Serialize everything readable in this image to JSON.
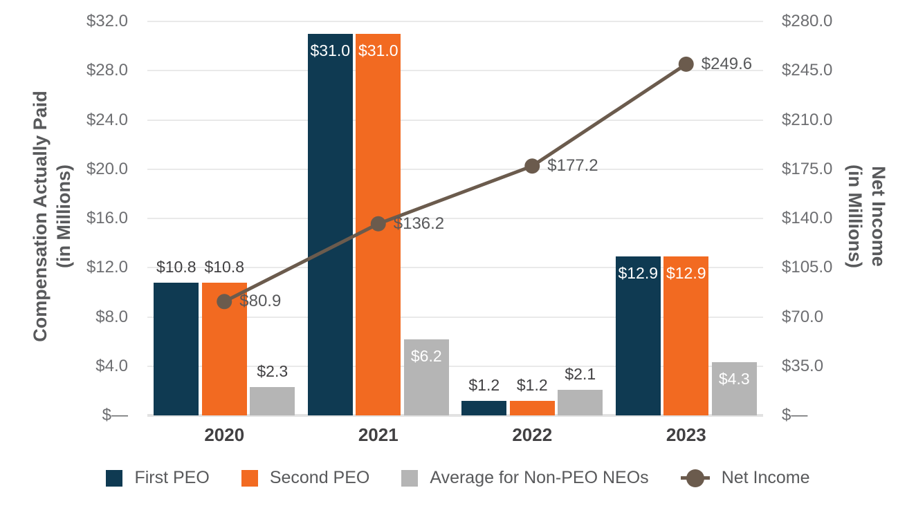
{
  "chart_data": {
    "type": "combo-bar-line",
    "categories": [
      "2020",
      "2021",
      "2022",
      "2023"
    ],
    "left_axis": {
      "title_lines": [
        "Compensation Actually Paid",
        "(in Millions)"
      ],
      "ticks": [
        "$32.0",
        "$28.0",
        "$24.0",
        "$20.0",
        "$16.0",
        "$12.0",
        "$8.0",
        "$4.0",
        "$—"
      ],
      "min": 0,
      "max": 32
    },
    "right_axis": {
      "title_lines": [
        "Net Income",
        "(in Millions)"
      ],
      "ticks": [
        "$280.0",
        "$245.0",
        "$210.0",
        "$175.0",
        "$140.0",
        "$105.0",
        "$70.0",
        "$35.0",
        "$—"
      ],
      "min": 0,
      "max": 280
    },
    "series": [
      {
        "name": "First PEO",
        "axis": "left",
        "color": "#0f3a52",
        "values": [
          10.8,
          31.0,
          1.2,
          12.9
        ],
        "labels": [
          "$10.8",
          "$31.0",
          "$1.2",
          "$12.9"
        ]
      },
      {
        "name": "Second PEO",
        "axis": "left",
        "color": "#f26a21",
        "values": [
          10.8,
          31.0,
          1.2,
          12.9
        ],
        "labels": [
          "$10.8",
          "$31.0",
          "$1.2",
          "$12.9"
        ]
      },
      {
        "name": "Average for Non-PEO NEOs",
        "axis": "left",
        "color": "#b5b5b5",
        "values": [
          2.3,
          6.2,
          2.1,
          4.3
        ],
        "labels": [
          "$2.3",
          "$6.2",
          "$2.1",
          "$4.3"
        ]
      }
    ],
    "line_series": {
      "name": "Net Income",
      "axis": "right",
      "color": "#6b5b4d",
      "values": [
        80.9,
        136.2,
        177.2,
        249.6
      ],
      "labels": [
        "$80.9",
        "$136.2",
        "$177.2",
        "$249.6"
      ]
    },
    "value_label_placement_by_year": [
      "above",
      "inside",
      "above",
      "inside"
    ],
    "legend": [
      {
        "label": "First PEO",
        "marker": "square",
        "color": "#0f3a52"
      },
      {
        "label": "Second PEO",
        "marker": "square",
        "color": "#f26a21"
      },
      {
        "label": "Average for Non-PEO NEOs",
        "marker": "square",
        "color": "#b5b5b5"
      },
      {
        "label": "Net Income",
        "marker": "line-dot",
        "color": "#6b5b4d"
      }
    ],
    "layout_hints": {
      "grid": true,
      "legend_position": "bottom",
      "bar_value_prefix": "$"
    },
    "colors": {
      "grid": "#e9e9e9",
      "baseline": "#e2e2e2",
      "tick_text": "#6d6e71",
      "year_text": "#414042",
      "bar_label_dark": "#414042",
      "bar_label_light": "#ffffff",
      "line_label": "#58595b",
      "legend_text": "#58595b",
      "axis_title": "#58595b"
    }
  }
}
